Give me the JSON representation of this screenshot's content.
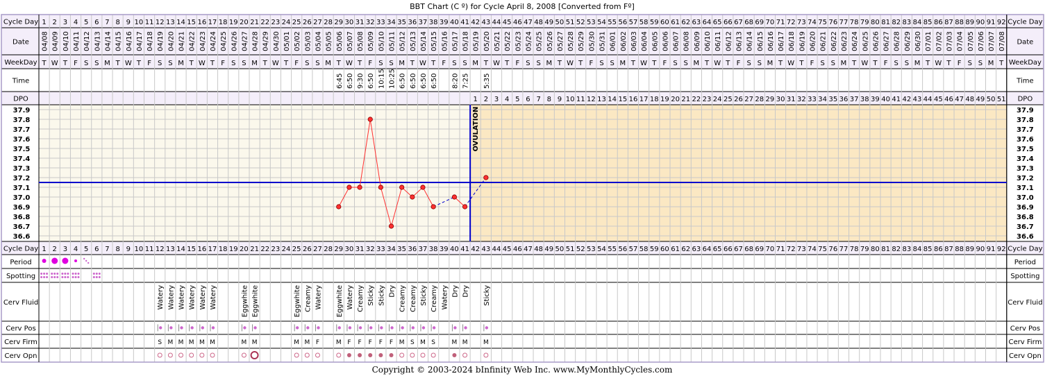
{
  "title": "BBT Chart (C º) for Cycle April 8, 2008  [Converted from Fº]",
  "footer": "Copyright © 2003-2024 bInfinity Web Inc.     www.MyMonthlyCycles.com",
  "row_labels": {
    "cycle_day": "Cycle Day",
    "date": "Date",
    "weekday": "WeekDay",
    "time": "Time",
    "dpo": "DPO",
    "period": "Period",
    "spotting": "Spotting",
    "cerv_fluid": "Cerv Fluid",
    "cerv_pos": "Cerv Pos",
    "cerv_firm": "Cerv Firm",
    "cerv_opn": "Cerv Opn"
  },
  "ovulation_label": "OVULATION",
  "colors": {
    "frame": "#a89bc8",
    "header_bg": "#f4eefa",
    "plot_pre": "#fbf8ec",
    "plot_post": "#fbe8c3",
    "grid": "#c8c8c8",
    "temp_line": "#ff3030",
    "coverline": "#0000cc",
    "marker": "#cc66cc",
    "period_dot": "#e000e0"
  },
  "chart_data": {
    "type": "line",
    "title": "BBT Chart (C º) for Cycle April 8, 2008  [Converted from Fº]",
    "days": 92,
    "dates": [
      "04/08",
      "04/09",
      "04/10",
      "04/11",
      "04/12",
      "04/13",
      "04/14",
      "04/15",
      "04/16",
      "04/17",
      "04/18",
      "04/19",
      "04/20",
      "04/21",
      "04/22",
      "04/23",
      "04/24",
      "04/25",
      "04/26",
      "04/27",
      "04/28",
      "04/29",
      "04/30",
      "05/01",
      "05/02",
      "05/03",
      "05/04",
      "05/05",
      "05/06",
      "05/07",
      "05/08",
      "05/09",
      "05/10",
      "05/11",
      "05/12",
      "05/13",
      "05/14",
      "05/15",
      "05/16",
      "05/17",
      "05/18",
      "05/19",
      "05/20",
      "05/21",
      "05/22",
      "05/23",
      "05/24",
      "05/25",
      "05/26",
      "05/27",
      "05/28",
      "05/29",
      "05/30",
      "05/31",
      "06/01",
      "06/02",
      "06/03",
      "06/04",
      "06/05",
      "06/06",
      "06/07",
      "06/08",
      "06/09",
      "06/10",
      "06/11",
      "06/12",
      "06/13",
      "06/14",
      "06/15",
      "06/16",
      "06/17",
      "06/18",
      "06/19",
      "06/20",
      "06/21",
      "06/22",
      "06/23",
      "06/24",
      "06/25",
      "06/26",
      "06/27",
      "06/28",
      "06/29",
      "06/30",
      "07/01",
      "07/02",
      "07/03",
      "07/04",
      "07/05",
      "07/06",
      "07/07",
      "07/08"
    ],
    "weekdays": [
      "T",
      "W",
      "T",
      "F",
      "S",
      "S",
      "M",
      "T",
      "W",
      "T",
      "F",
      "S",
      "S",
      "M",
      "T",
      "W",
      "T",
      "F",
      "S",
      "S",
      "M",
      "T",
      "W",
      "T",
      "F",
      "S",
      "S",
      "M",
      "T",
      "W",
      "T",
      "F",
      "S",
      "S",
      "M",
      "T",
      "W",
      "T",
      "F",
      "S",
      "S",
      "M",
      "T",
      "W",
      "T",
      "F",
      "S",
      "S",
      "M",
      "T",
      "W",
      "T",
      "F",
      "S",
      "S",
      "M",
      "T",
      "W",
      "T",
      "F",
      "S",
      "S",
      "M",
      "T",
      "W",
      "T",
      "F",
      "S",
      "S",
      "M",
      "T",
      "W",
      "T",
      "F",
      "S",
      "S",
      "M",
      "T",
      "W",
      "T",
      "F",
      "S",
      "S",
      "M",
      "T",
      "W",
      "T",
      "F",
      "S",
      "S",
      "M",
      "T"
    ],
    "times": {
      "29": "6:45",
      "30": "6:50",
      "31": "9:30",
      "32": "6:50",
      "33": "10:15",
      "34": "10:25",
      "35": "6:50",
      "36": "6:50",
      "37": "6:50",
      "38": "6:50",
      "40": "8:20",
      "41": "7:25",
      "43": "5:35"
    },
    "temperatures": [
      {
        "day": 29,
        "temp": 36.9
      },
      {
        "day": 30,
        "temp": 37.1
      },
      {
        "day": 31,
        "temp": 37.1
      },
      {
        "day": 32,
        "temp": 37.8
      },
      {
        "day": 33,
        "temp": 37.1
      },
      {
        "day": 34,
        "temp": 36.7
      },
      {
        "day": 35,
        "temp": 37.1
      },
      {
        "day": 36,
        "temp": 37.0
      },
      {
        "day": 37,
        "temp": 37.1
      },
      {
        "day": 38,
        "temp": 36.9
      },
      {
        "day": 40,
        "temp": 37.0
      },
      {
        "day": 41,
        "temp": 36.9
      },
      {
        "day": 43,
        "temp": 37.2
      }
    ],
    "solid_segments": [
      [
        29,
        38
      ],
      [
        40,
        41
      ]
    ],
    "dashed_segments": [
      [
        38,
        40
      ],
      [
        41,
        43
      ]
    ],
    "ylim": [
      36.6,
      37.9
    ],
    "yticks": [
      "37.9",
      "37.8",
      "37.7",
      "37.6",
      "37.5",
      "37.4",
      "37.3",
      "37.2",
      "37.1",
      "37.0",
      "36.9",
      "36.8",
      "36.7",
      "36.6"
    ],
    "coverline": 37.15,
    "ovulation_day": 41,
    "dpo_start_day": 42,
    "dpo_count": 51,
    "period": [
      {
        "day": 1,
        "level": "medium"
      },
      {
        "day": 2,
        "level": "heavy"
      },
      {
        "day": 3,
        "level": "heavy"
      },
      {
        "day": 4,
        "level": "light"
      },
      {
        "day": 5,
        "level": "spotting"
      }
    ],
    "spotting_days": [
      1,
      2,
      3,
      4,
      6
    ],
    "cerv_fluid": {
      "12": "Watery",
      "13": "Watery",
      "14": "Watery",
      "15": "Watery",
      "16": "Watery",
      "17": "Watery",
      "20": "Eggwhite",
      "21": "Eggwhite",
      "25": "Eggwhite",
      "26": "Creamy",
      "27": "Watery",
      "29": "Eggwhite",
      "30": "Watery",
      "31": "Creamy",
      "32": "Sticky",
      "33": "Sticky",
      "34": "Dry",
      "35": "Creamy",
      "36": "Creamy",
      "37": "Sticky",
      "38": "Creamy",
      "39": "Watery",
      "40": "Dry",
      "41": "Dry",
      "43": "Sticky"
    },
    "cerv_pos_days": [
      12,
      13,
      14,
      15,
      16,
      17,
      20,
      21,
      25,
      26,
      27,
      29,
      30,
      31,
      32,
      33,
      34,
      35,
      36,
      37,
      38,
      40,
      41,
      43
    ],
    "cerv_firm": {
      "12": "S",
      "13": "M",
      "14": "M",
      "15": "M",
      "16": "M",
      "17": "M",
      "20": "M",
      "21": "M",
      "25": "M",
      "26": "M",
      "27": "F",
      "29": "M",
      "30": "F",
      "31": "F",
      "32": "F",
      "33": "F",
      "34": "F",
      "35": "M",
      "36": "S",
      "37": "M",
      "38": "S",
      "40": "M",
      "41": "M",
      "43": "M"
    },
    "cerv_opn": {
      "12": "o",
      "13": "o",
      "14": "o",
      "15": "o",
      "16": "o",
      "17": "o",
      "20": "o",
      "21": "O",
      "25": "o",
      "26": "o",
      "27": "o",
      "29": "o",
      "30": "c",
      "31": "c",
      "32": "c",
      "33": "c",
      "34": "c",
      "35": "o",
      "36": "o",
      "37": "o",
      "38": "o",
      "40": "c",
      "41": "o",
      "43": "o"
    },
    "grid": true
  }
}
